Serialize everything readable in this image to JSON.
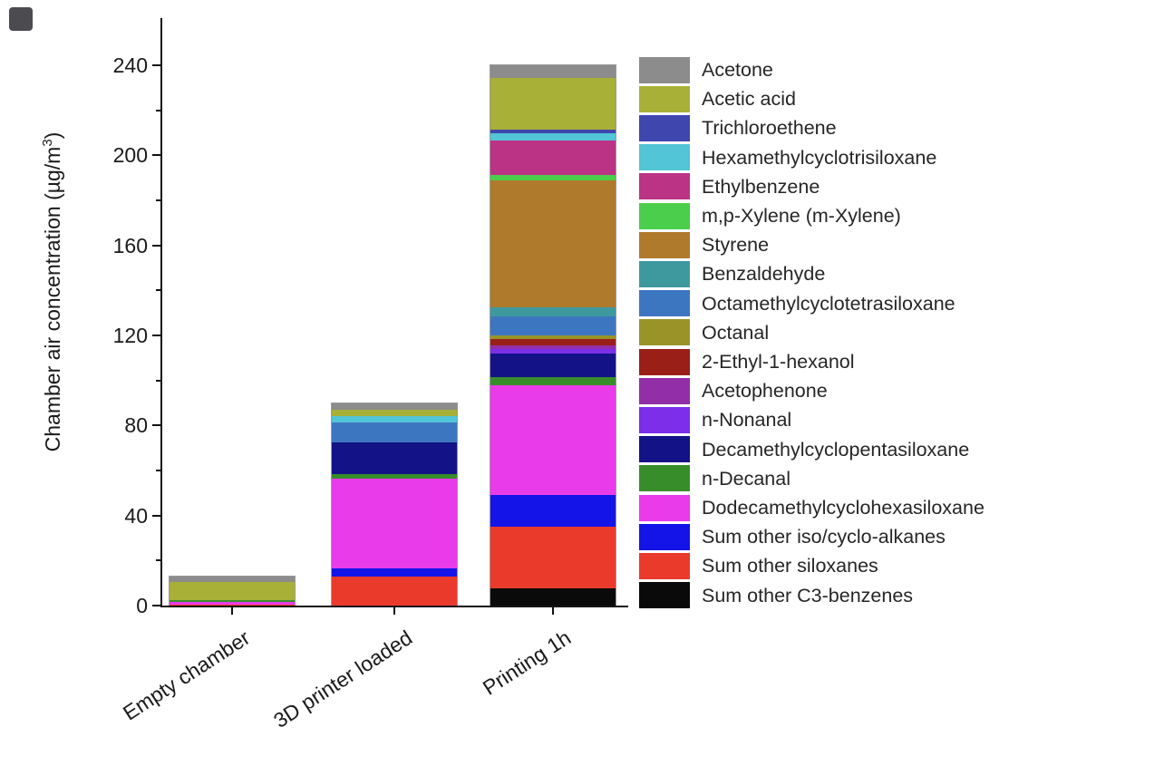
{
  "y_axis": {
    "label_main": "Chamber air concentration (µg/m",
    "label_sup": "3",
    "label_end": ")",
    "major_ticks": [
      0,
      40,
      80,
      120,
      160,
      200,
      240
    ],
    "minor_ticks": [
      20,
      60,
      100,
      140,
      180,
      220
    ]
  },
  "chart_data": {
    "type": "bar",
    "stacked": true,
    "title": "",
    "xlabel": "",
    "ylabel": "Chamber air concentration (µg/m³)",
    "ylim": [
      0,
      250
    ],
    "grid": false,
    "legend_position": "right",
    "stack_order": "bottom of bar corresponds to last legend entry",
    "categories": [
      "Empty chamber",
      "3D printer loaded",
      "Printing 1h"
    ],
    "series": [
      {
        "name": "Acetone",
        "color": "#8c8c8c",
        "values": [
          2.5,
          3,
          5.5
        ]
      },
      {
        "name": "Acetic acid",
        "color": "#a8b038",
        "values": [
          8,
          3,
          23
        ]
      },
      {
        "name": "Trichloroethene",
        "color": "#3f46ae",
        "values": [
          0,
          0,
          1.5
        ]
      },
      {
        "name": "Hexamethylcyclotrisiloxane",
        "color": "#52c5d6",
        "values": [
          0,
          2.5,
          3.5
        ]
      },
      {
        "name": "Ethylbenzene",
        "color": "#bb3385",
        "values": [
          0,
          0,
          15
        ]
      },
      {
        "name": "m,p-Xylene (m-Xylene)",
        "color": "#4bce4b",
        "values": [
          0,
          0,
          2.5
        ]
      },
      {
        "name": "Styrene",
        "color": "#b07a2c",
        "values": [
          0,
          0,
          56.5
        ]
      },
      {
        "name": "Benzaldehyde",
        "color": "#3e999e",
        "values": [
          0,
          0,
          4
        ]
      },
      {
        "name": "Octamethylcyclotetrasiloxane",
        "color": "#3d76c0",
        "values": [
          0,
          9,
          8.5
        ]
      },
      {
        "name": "Octanal",
        "color": "#9a9428",
        "values": [
          0,
          0,
          1.5
        ]
      },
      {
        "name": "2-Ethyl-1-hexanol",
        "color": "#9a1f17",
        "values": [
          0,
          0,
          3
        ]
      },
      {
        "name": "Acetophenone",
        "color": "#922fa8",
        "values": [
          0,
          0,
          1.5
        ]
      },
      {
        "name": "n-Nonanal",
        "color": "#7c2ee8",
        "values": [
          0,
          0,
          2
        ]
      },
      {
        "name": "Decamethylcyclopentasiloxane",
        "color": "#131387",
        "values": [
          0,
          14,
          10.5
        ]
      },
      {
        "name": "n-Decanal",
        "color": "#388d2b",
        "values": [
          1,
          2,
          3.5
        ]
      },
      {
        "name": "Dodecamethylcyclohexasiloxane",
        "color": "#ea3bea",
        "values": [
          1,
          40,
          49
        ]
      },
      {
        "name": "Sum other iso/cyclo-alkanes",
        "color": "#1414e8",
        "values": [
          0,
          3.5,
          14
        ]
      },
      {
        "name": "Sum other siloxanes",
        "color": "#ea3a2c",
        "values": [
          0.5,
          13,
          27.5
        ]
      },
      {
        "name": "Sum other C3-benzenes",
        "color": "#0a0a0a",
        "values": [
          0,
          0,
          7.5
        ]
      }
    ],
    "totals": [
      13,
      90,
      240
    ]
  }
}
